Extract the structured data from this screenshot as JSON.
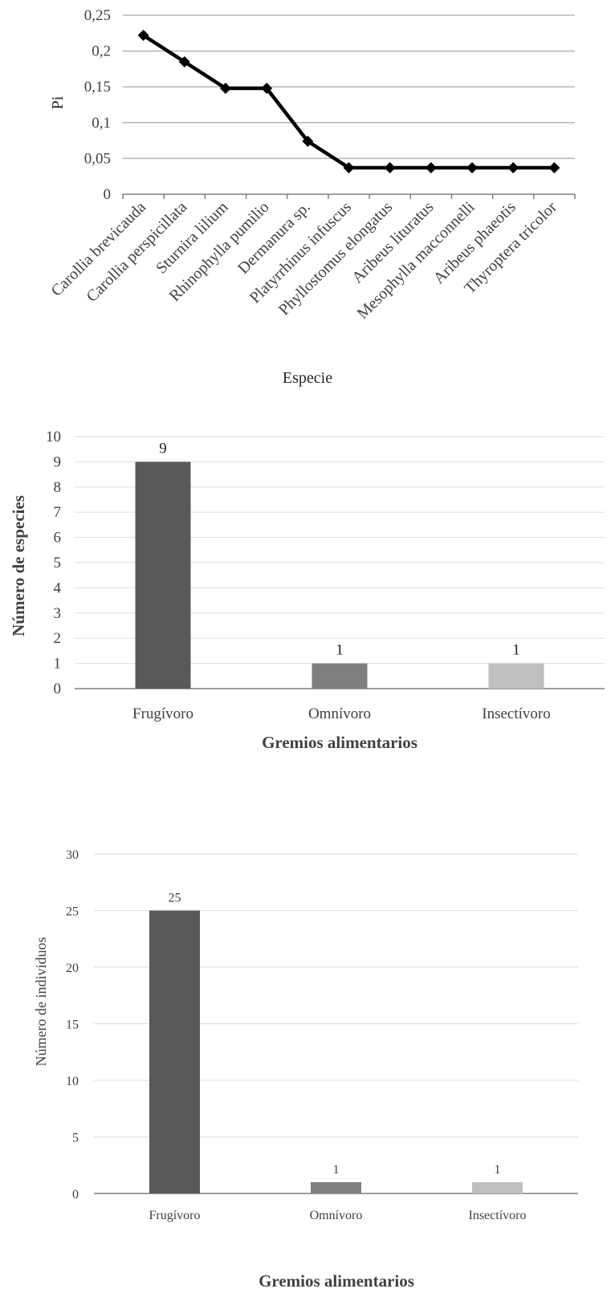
{
  "chart_data": [
    {
      "type": "line",
      "title": "",
      "xlabel": "Especie",
      "ylabel": "Pi",
      "ylim": [
        0,
        0.25
      ],
      "yticks": [
        "0",
        "0,05",
        "0,1",
        "0,15",
        "0,2",
        "0,25"
      ],
      "grid": true,
      "categories": [
        "Carollia brevicauda",
        "Carollia perspicillata",
        "Sturnira lilium",
        "Rhinophylla pumilio",
        "Dermanura sp.",
        "Platyrrhinus infuscus",
        "Phyllostomus elongatus",
        "Aribeus lituratus",
        "Mesophylla macconnelli",
        "Aribeus phaeotis",
        "Thyroptera tricolor"
      ],
      "values": [
        0.222,
        0.185,
        0.148,
        0.148,
        0.074,
        0.037,
        0.037,
        0.037,
        0.037,
        0.037,
        0.037
      ],
      "line_color": "#000000"
    },
    {
      "type": "bar",
      "title": "",
      "xlabel": "Gremios alimentarios",
      "ylabel": "Número de especies",
      "ylim": [
        0,
        10
      ],
      "yticks": [
        "0",
        "1",
        "2",
        "3",
        "4",
        "5",
        "6",
        "7",
        "8",
        "9",
        "10"
      ],
      "grid": true,
      "categories": [
        "Frugívoro",
        "Omnívoro",
        "Insectívoro"
      ],
      "values": [
        9,
        1,
        1
      ],
      "data_labels": [
        "9",
        "1",
        "1"
      ],
      "colors": [
        "#595959",
        "#7f7f7f",
        "#bfbfbf"
      ]
    },
    {
      "type": "bar",
      "title": "",
      "xlabel": "Gremios alimentarios",
      "ylabel": "Número de individuos",
      "ylim": [
        0,
        30
      ],
      "yticks": [
        "0",
        "5",
        "10",
        "15",
        "20",
        "25",
        "30"
      ],
      "grid": true,
      "categories": [
        "Frugívoro",
        "Omnívoro",
        "Insectívoro"
      ],
      "values": [
        25,
        1,
        1
      ],
      "data_labels": [
        "25",
        "1",
        "1"
      ],
      "colors": [
        "#595959",
        "#7f7f7f",
        "#bfbfbf"
      ]
    }
  ]
}
